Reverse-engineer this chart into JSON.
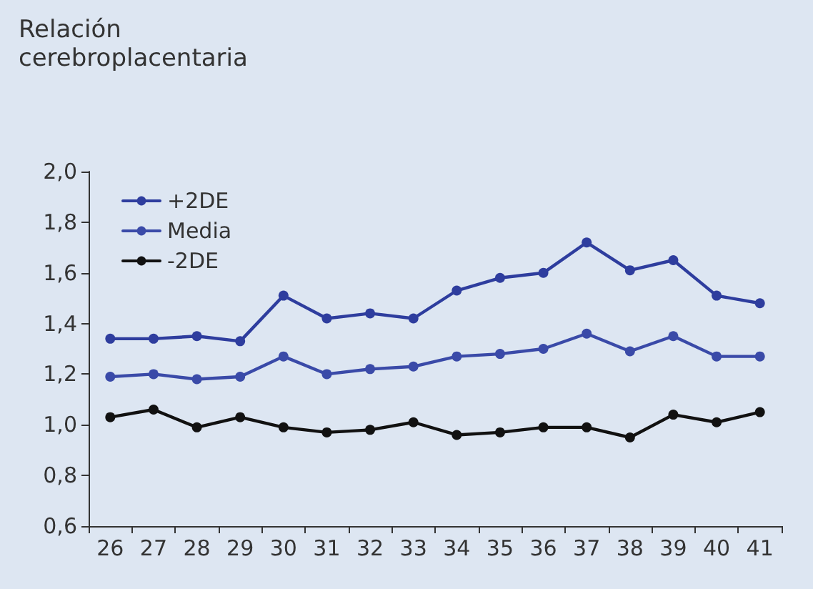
{
  "chart_data": {
    "type": "line",
    "title": "Relación cerebroplacentaria",
    "categories": [
      "26",
      "27",
      "28",
      "29",
      "30",
      "31",
      "32",
      "33",
      "34",
      "35",
      "36",
      "37",
      "38",
      "39",
      "40",
      "41"
    ],
    "series": [
      {
        "name": "+2DE",
        "color": "#2e3d9e",
        "values": [
          1.34,
          1.34,
          1.35,
          1.33,
          1.51,
          1.42,
          1.44,
          1.42,
          1.53,
          1.58,
          1.6,
          1.72,
          1.61,
          1.65,
          1.51,
          1.48
        ]
      },
      {
        "name": "Media",
        "color": "#3a4aa8",
        "values": [
          1.19,
          1.2,
          1.18,
          1.19,
          1.27,
          1.2,
          1.22,
          1.23,
          1.27,
          1.28,
          1.3,
          1.36,
          1.29,
          1.35,
          1.27,
          1.27
        ]
      },
      {
        "name": "-2DE",
        "color": "#111111",
        "values": [
          1.03,
          1.06,
          0.99,
          1.03,
          0.99,
          0.97,
          0.98,
          1.01,
          0.96,
          0.97,
          0.99,
          0.99,
          0.95,
          1.04,
          1.01,
          1.05
        ]
      }
    ],
    "ylim": [
      0.6,
      2.0
    ],
    "yticks": [
      {
        "value": 0.6,
        "label": "0,6"
      },
      {
        "value": 0.8,
        "label": "0,8"
      },
      {
        "value": 1.0,
        "label": "1,0"
      },
      {
        "value": 1.2,
        "label": "1,2"
      },
      {
        "value": 1.4,
        "label": "1,4"
      },
      {
        "value": 1.6,
        "label": "1,6"
      },
      {
        "value": 1.8,
        "label": "1,8"
      },
      {
        "value": 2.0,
        "label": "2,0"
      }
    ],
    "grid": false,
    "legend": "top left",
    "marker": "circle",
    "line_style": "solid"
  }
}
